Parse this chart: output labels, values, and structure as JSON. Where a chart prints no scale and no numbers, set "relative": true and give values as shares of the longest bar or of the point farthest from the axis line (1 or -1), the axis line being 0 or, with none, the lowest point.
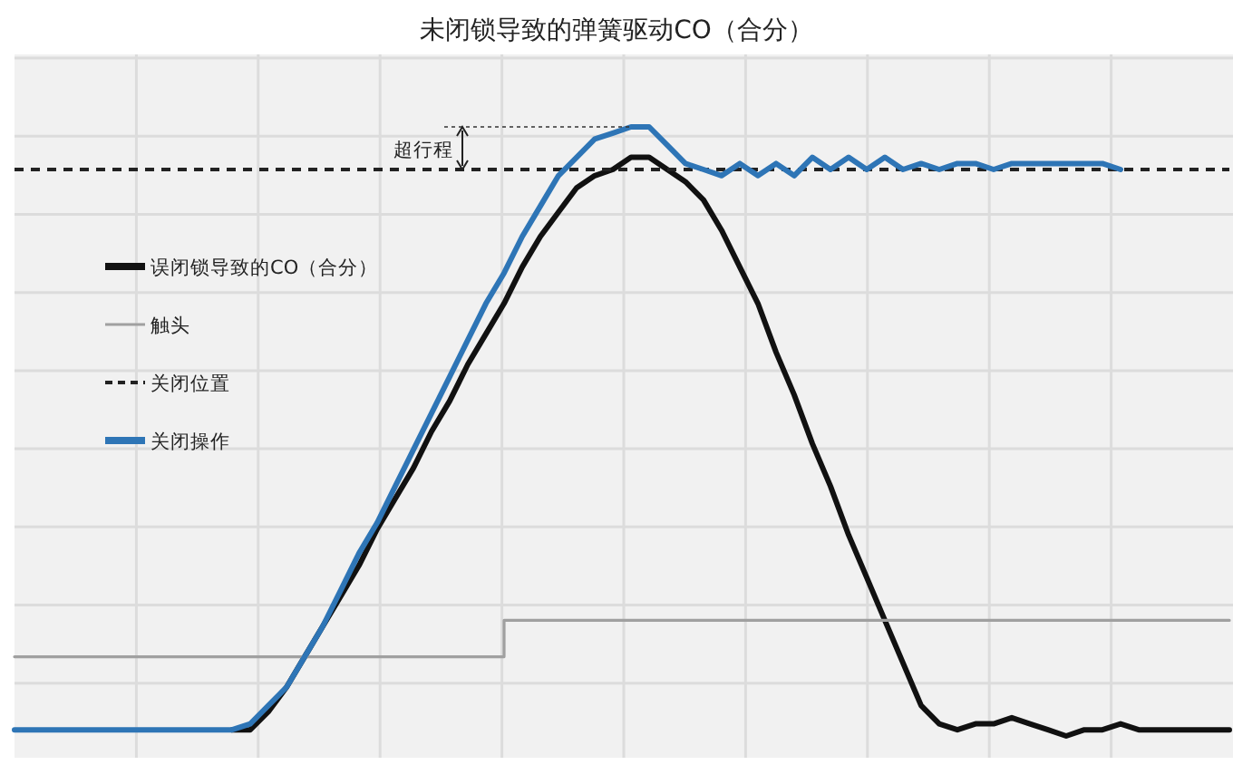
{
  "chart_data": {
    "type": "line",
    "title": "未闭锁导致的弹簧驱动CO（合分）",
    "relative": true,
    "grid": true,
    "legend": "left",
    "annotations": [
      "超行程"
    ],
    "categories": [
      null,
      null,
      null,
      null,
      null,
      null,
      null,
      null,
      null,
      null,
      null,
      null,
      null,
      null,
      null,
      null,
      null,
      null,
      null,
      null,
      null,
      null,
      null,
      null,
      null,
      null,
      null,
      null,
      null,
      null,
      null,
      null,
      null,
      null,
      null,
      null,
      null,
      null,
      null,
      null,
      null,
      null,
      null,
      null,
      null,
      null,
      null,
      null,
      null,
      null,
      null,
      null,
      null,
      null,
      null,
      null,
      null,
      null,
      null,
      null,
      null,
      null,
      null,
      null,
      null,
      null,
      null,
      null
    ],
    "series": [
      {
        "name": "误闭锁导致的CO（合分）",
        "color": "#111111",
        "line_style": "solid",
        "values": [
          null,
          null,
          null,
          null,
          null,
          null,
          null,
          null,
          null,
          null,
          null,
          null,
          0.01,
          0.01,
          0.04,
          0.08,
          0.13,
          0.18,
          0.23,
          0.28,
          0.34,
          0.39,
          0.44,
          0.5,
          0.55,
          0.61,
          0.66,
          0.71,
          0.77,
          0.82,
          0.86,
          0.9,
          0.92,
          0.93,
          0.95,
          0.95,
          0.93,
          0.91,
          0.88,
          0.83,
          0.77,
          0.71,
          0.63,
          0.56,
          0.48,
          0.41,
          0.33,
          0.26,
          0.19,
          0.12,
          0.05,
          0.02,
          0.01,
          0.02,
          0.02,
          0.03,
          0.02,
          0.01,
          0.0,
          0.01,
          0.01,
          0.02,
          0.01,
          0.01,
          0.01,
          0.01,
          0.01,
          0.01
        ]
      },
      {
        "name": "触头",
        "color": "#a0a0a0",
        "type": "step",
        "line_style": "solid",
        "values": [
          0.13,
          0.13,
          0.13,
          0.13,
          0.13,
          0.13,
          0.13,
          0.13,
          0.13,
          0.13,
          0.13,
          0.13,
          0.13,
          0.13,
          0.13,
          0.13,
          0.13,
          0.13,
          0.13,
          0.13,
          0.13,
          0.13,
          0.13,
          0.13,
          0.13,
          0.13,
          0.13,
          0.19,
          0.19,
          0.19,
          0.19,
          0.19,
          0.19,
          0.19,
          0.19,
          0.19,
          0.19,
          0.19,
          0.19,
          0.19,
          0.19,
          0.19,
          0.19,
          0.19,
          0.19,
          0.19,
          0.19,
          0.19,
          0.19,
          0.19,
          0.19,
          0.19,
          0.19,
          0.19,
          0.19,
          0.19,
          0.19,
          0.19,
          0.19,
          0.19,
          0.19,
          0.19,
          0.19,
          0.19,
          0.19,
          0.19,
          0.19,
          0.19
        ]
      },
      {
        "name": "关闭位置",
        "color": "#222222",
        "line_style": "dashed",
        "values": [
          0.93,
          0.93,
          0.93,
          0.93,
          0.93,
          0.93,
          0.93,
          0.93,
          0.93,
          0.93,
          0.93,
          0.93,
          0.93,
          0.93,
          0.93,
          0.93,
          0.93,
          0.93,
          0.93,
          0.93,
          0.93,
          0.93,
          0.93,
          0.93,
          0.93,
          0.93,
          0.93,
          0.93,
          0.93,
          0.93,
          0.93,
          0.93,
          0.93,
          0.93,
          0.93,
          0.93,
          0.93,
          0.93,
          0.93,
          0.93,
          0.93,
          0.93,
          0.93,
          0.93,
          0.93,
          0.93,
          0.93,
          0.93,
          0.93,
          0.93,
          0.93,
          0.93,
          0.93,
          0.93,
          0.93,
          0.93,
          0.93,
          0.93,
          0.93,
          0.93,
          0.93,
          0.93,
          0.93,
          0.93,
          0.93,
          0.93,
          0.93,
          0.93
        ]
      },
      {
        "name": "关闭操作",
        "color": "#2e75b6",
        "line_style": "solid",
        "values": [
          0.01,
          0.01,
          0.01,
          0.01,
          0.01,
          0.01,
          0.01,
          0.01,
          0.01,
          0.01,
          0.01,
          0.01,
          0.01,
          0.02,
          0.05,
          0.08,
          0.13,
          0.18,
          0.24,
          0.3,
          0.35,
          0.41,
          0.47,
          0.53,
          0.59,
          0.65,
          0.71,
          0.76,
          0.82,
          0.87,
          0.92,
          0.95,
          0.98,
          0.99,
          1.0,
          1.0,
          0.97,
          0.94,
          0.93,
          0.92,
          0.94,
          0.92,
          0.94,
          0.92,
          0.95,
          0.93,
          0.95,
          0.93,
          0.95,
          0.93,
          0.94,
          0.93,
          0.94,
          0.94,
          0.93,
          0.94,
          0.94,
          0.94,
          0.94,
          0.94,
          0.94,
          0.93,
          null,
          null,
          null,
          null,
          null,
          null
        ]
      }
    ]
  }
}
